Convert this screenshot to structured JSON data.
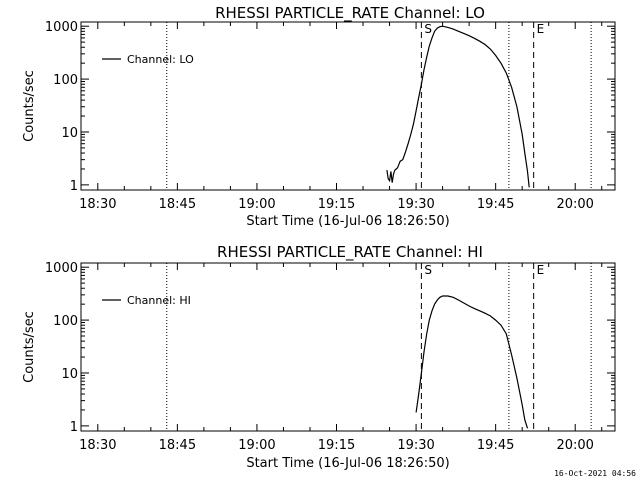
{
  "footer_timestamp": "16-Oct-2021 04:56",
  "chart_data": [
    {
      "type": "line",
      "title": "RHESSI PARTICLE_RATE Channel: LO",
      "xlabel": "Start Time (16-Jul-06 18:26:50)",
      "ylabel": "Counts/sec",
      "y_scale": "log",
      "ylim": [
        0.8,
        1200
      ],
      "xlim": [
        "18:26:50",
        "20:07:30"
      ],
      "x_ticks": [
        "18:30",
        "18:45",
        "19:00",
        "19:15",
        "19:30",
        "19:45",
        "20:00"
      ],
      "y_ticks": [
        "1",
        "10",
        "100",
        "1000"
      ],
      "legend": {
        "label": "Channel: LO",
        "position": "top-left"
      },
      "markers": [
        {
          "label": "S",
          "time": "19:31:00",
          "style": "dashed"
        },
        {
          "label": "E",
          "time": "19:52:10",
          "style": "dashed"
        },
        {
          "label": "",
          "time": "18:43:00",
          "style": "dotted"
        },
        {
          "label": "",
          "time": "19:47:30",
          "style": "dotted"
        },
        {
          "label": "",
          "time": "20:03:00",
          "style": "dotted"
        }
      ],
      "series": [
        {
          "name": "Channel: LO",
          "x": [
            "19:24:30",
            "19:24:45",
            "19:25:00",
            "19:25:15",
            "19:25:30",
            "19:25:45",
            "19:26:00",
            "19:26:15",
            "19:26:30",
            "19:27:00",
            "19:27:30",
            "19:28:00",
            "19:28:30",
            "19:29:00",
            "19:29:30",
            "19:30:00",
            "19:30:30",
            "19:31:00",
            "19:31:30",
            "19:32:00",
            "19:32:30",
            "19:33:00",
            "19:33:30",
            "19:34:00",
            "19:34:30",
            "19:35:00",
            "19:36:00",
            "19:37:00",
            "19:38:00",
            "19:39:00",
            "19:40:00",
            "19:41:00",
            "19:42:00",
            "19:43:00",
            "19:44:00",
            "19:45:00",
            "19:46:00",
            "19:47:00",
            "19:48:00",
            "19:49:00",
            "19:50:00",
            "19:50:30",
            "19:51:00",
            "19:51:20"
          ],
          "y": [
            1.9,
            1.3,
            1.2,
            1.8,
            1.1,
            1.6,
            1.9,
            2.0,
            2.1,
            2.8,
            3.0,
            4.2,
            6.0,
            9.0,
            14,
            25,
            45,
            80,
            150,
            260,
            420,
            600,
            800,
            920,
            980,
            1000,
            950,
            880,
            800,
            730,
            660,
            590,
            520,
            450,
            370,
            280,
            200,
            130,
            70,
            30,
            9,
            4,
            1.8,
            0.9
          ]
        }
      ]
    },
    {
      "type": "line",
      "title": "RHESSI PARTICLE_RATE Channel: HI",
      "xlabel": "Start Time (16-Jul-06 18:26:50)",
      "ylabel": "Counts/sec",
      "y_scale": "log",
      "ylim": [
        0.8,
        1200
      ],
      "xlim": [
        "18:26:50",
        "20:07:30"
      ],
      "x_ticks": [
        "18:30",
        "18:45",
        "19:00",
        "19:15",
        "19:30",
        "19:45",
        "20:00"
      ],
      "y_ticks": [
        "1",
        "10",
        "100",
        "1000"
      ],
      "legend": {
        "label": "Channel: HI",
        "position": "top-left"
      },
      "markers": [
        {
          "label": "S",
          "time": "19:31:00",
          "style": "dashed"
        },
        {
          "label": "E",
          "time": "19:52:10",
          "style": "dashed"
        },
        {
          "label": "",
          "time": "18:43:00",
          "style": "dotted"
        },
        {
          "label": "",
          "time": "19:47:30",
          "style": "dotted"
        },
        {
          "label": "",
          "time": "20:03:00",
          "style": "dotted"
        }
      ],
      "series": [
        {
          "name": "Channel: HI",
          "x": [
            "19:30:00",
            "19:30:30",
            "19:31:00",
            "19:31:30",
            "19:32:00",
            "19:32:30",
            "19:33:00",
            "19:33:30",
            "19:34:00",
            "19:34:30",
            "19:35:00",
            "19:36:00",
            "19:37:00",
            "19:38:00",
            "19:39:00",
            "19:40:00",
            "19:41:00",
            "19:42:00",
            "19:43:00",
            "19:44:00",
            "19:45:00",
            "19:46:00",
            "19:47:00",
            "19:48:00",
            "19:49:00",
            "19:50:00",
            "19:50:30",
            "19:51:00"
          ],
          "y": [
            1.8,
            4,
            10,
            25,
            55,
            100,
            150,
            200,
            240,
            270,
            285,
            285,
            270,
            240,
            210,
            185,
            165,
            150,
            135,
            120,
            100,
            80,
            55,
            22,
            8,
            2.5,
            1.3,
            0.9
          ]
        }
      ]
    }
  ]
}
